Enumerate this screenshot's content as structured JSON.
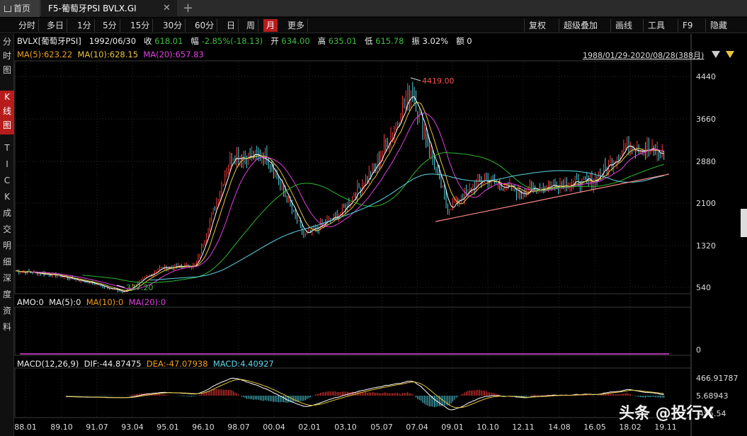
{
  "tabs": {
    "home_label": "首页",
    "chart_label": "F5-葡萄牙PSI BVLX.GI",
    "close_glyph": "✕",
    "add_glyph": "+"
  },
  "periods": [
    "分时",
    "多日",
    "1分",
    "5分",
    "15分",
    "30分",
    "60分",
    "日",
    "周",
    "月",
    "更多"
  ],
  "active_period": "月",
  "toolbar_right": [
    "复权",
    "超级叠加",
    "画线",
    "工具",
    "F9",
    "隐藏"
  ],
  "sidebar": [
    "分时图",
    "K线图",
    "TICK",
    "成交明细",
    "深度资料"
  ],
  "sidebar_active": "K线图",
  "info": {
    "symbol": "BVLX[葡萄牙PSI]",
    "date": "1992/06/30",
    "close_label": "收",
    "close": "618.01",
    "change_label": "幅",
    "change": "-2.85%(-18.13)",
    "open_label": "开",
    "open": "634.00",
    "high_label": "高",
    "high": "635.01",
    "low_label": "低",
    "low": "615.78",
    "amp_label": "振",
    "amp": "3.02%",
    "amount_label": "额",
    "amount": "0"
  },
  "ma_line": {
    "ma5": "MA(5):623.22",
    "ma10": "MA(10):628.15",
    "ma20": "MA(20):657.83"
  },
  "range": "1988/01/29-2020/08/28(388月)",
  "amo_line": {
    "amo": "AMO:0",
    "ma5": "MA(5):0",
    "ma10": "MA(10):0",
    "ma20": "MA(20):0"
  },
  "macd_line": {
    "name": "MACD(12,26,9)",
    "dif": "DIF:-44.87475",
    "dea": "DEA:-47.07938",
    "macd": "MACD:4.40927"
  },
  "price_axis": [
    "4440",
    "3660",
    "2880",
    "2100",
    "1320",
    "540"
  ],
  "amo_axis": [
    "0"
  ],
  "macd_axis": [
    "466.91787",
    "5.68943",
    "-455.54"
  ],
  "date_axis": [
    "88.01",
    "89.10",
    "91.07",
    "93.04",
    "95.01",
    "96.10",
    "98.07",
    "00.04",
    "02.01",
    "03.10",
    "05.07",
    "07.04",
    "09.01",
    "10.10",
    "12.11",
    "14.08",
    "16.05",
    "18.02",
    "19.11"
  ],
  "high_mark": "4419.00",
  "low_mark": "337.20",
  "watermark": "头条 @投行X",
  "chart_data": {
    "type": "line",
    "title": "",
    "x_labels": [
      "88.01",
      "89.10",
      "91.07",
      "93.04",
      "95.01",
      "96.10",
      "98.07",
      "00.04",
      "02.01",
      "03.10",
      "05.07",
      "07.04",
      "09.01",
      "10.10",
      "12.11",
      "14.08",
      "16.05",
      "18.02",
      "19.11"
    ],
    "ylim": [
      540,
      4440
    ],
    "series": [
      {
        "name": "",
        "color": "#e8c540",
        "values": [
          850,
          780,
          640,
          450,
          900,
          950,
          3000,
          2950,
          1500,
          1900,
          2800,
          4200,
          2000,
          2550,
          2300,
          2450,
          2500,
          3200,
          3000
        ]
      }
    ]
  }
}
